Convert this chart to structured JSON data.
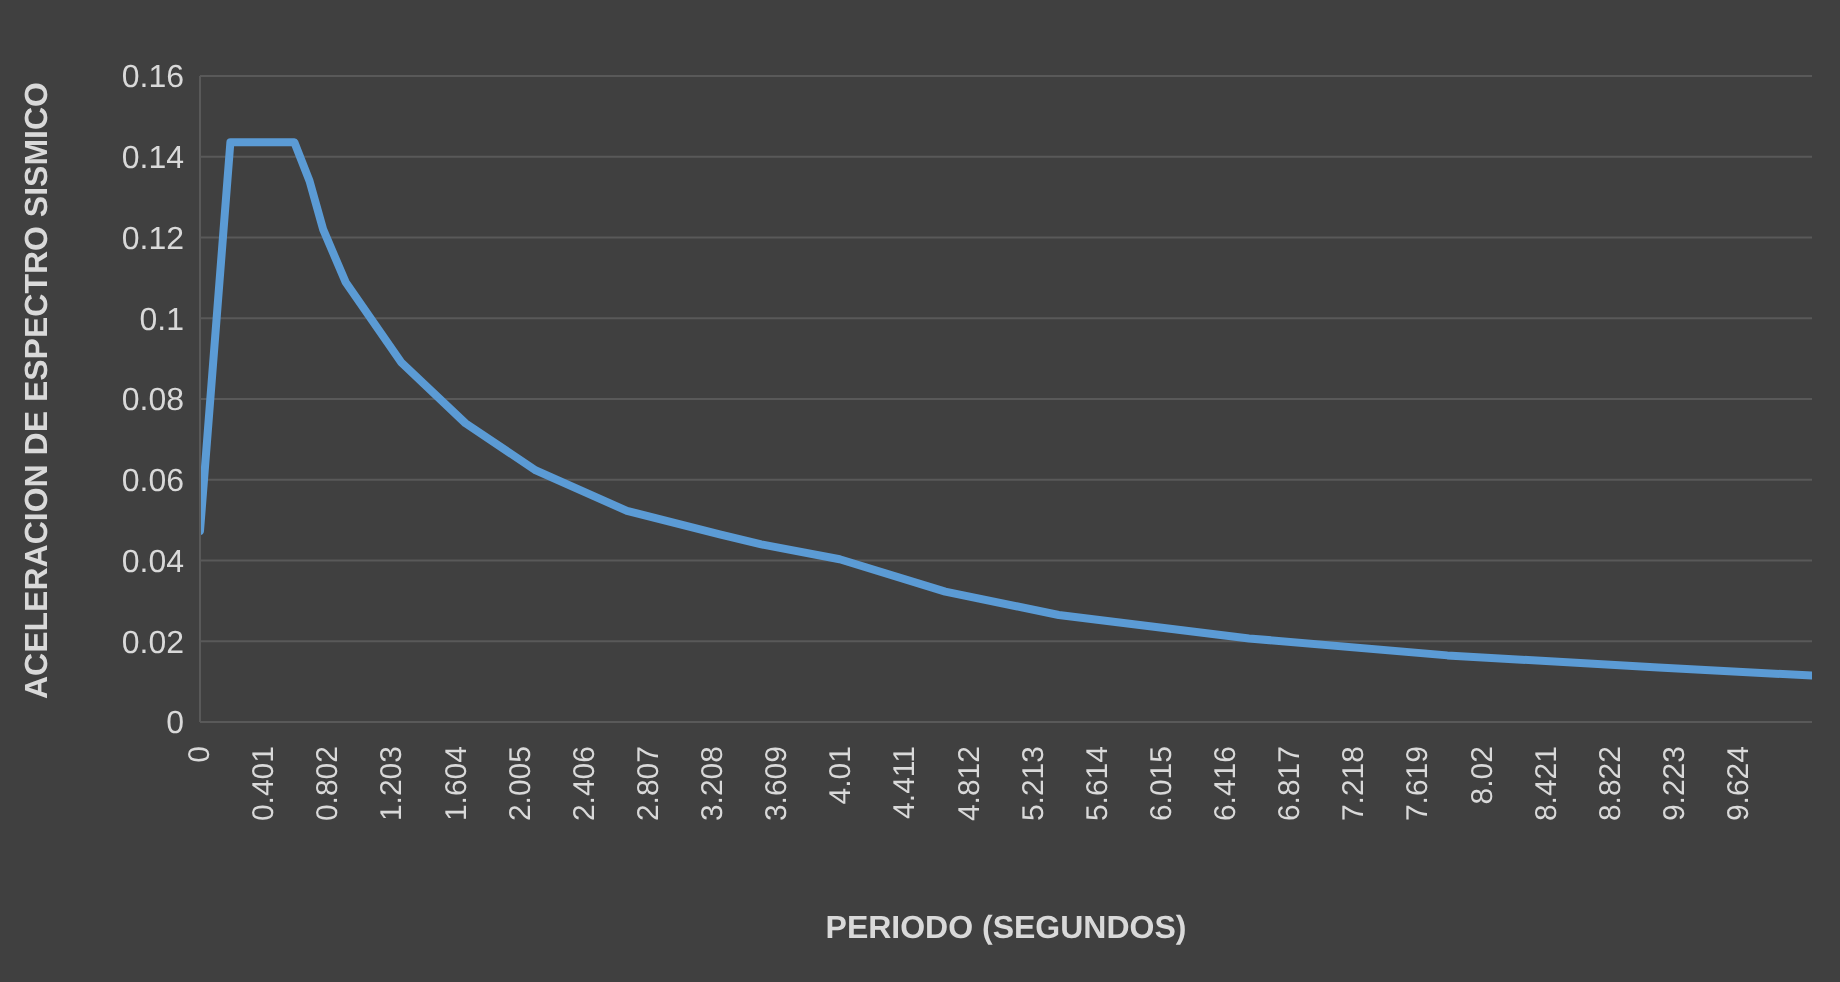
{
  "chart_data": {
    "type": "line",
    "xlabel": "PERIODO (SEGUNDOS)",
    "ylabel": "ACELERACION DE ESPECTRO SISMICO",
    "x": [
      0,
      0.19,
      0.59,
      0.685,
      0.77,
      0.91,
      1.26,
      1.66,
      2.1,
      2.67,
      3.25,
      3.51,
      4.0,
      4.66,
      5.37,
      6.56,
      7.8,
      9.12,
      10.08
    ],
    "series": [
      {
        "color": "#5b9bd5",
        "values": [
          0.0473,
          0.1436,
          0.1436,
          0.134,
          0.122,
          0.109,
          0.089,
          0.074,
          0.0623,
          0.0523,
          0.0465,
          0.044,
          0.0403,
          0.0323,
          0.0265,
          0.0207,
          0.0165,
          0.0135,
          0.0115
        ]
      }
    ],
    "xlim": [
      0,
      10.08
    ],
    "xticks": [
      0,
      0.401,
      0.802,
      1.203,
      1.604,
      2.005,
      2.406,
      2.807,
      3.208,
      3.609,
      4.01,
      4.411,
      4.812,
      5.213,
      5.614,
      6.015,
      6.416,
      6.817,
      7.218,
      7.619,
      8.02,
      8.421,
      8.822,
      9.223,
      9.624
    ],
    "ylim": [
      0,
      0.16
    ],
    "yticks": [
      0,
      0.02,
      0.04,
      0.06,
      0.08,
      0.1,
      0.12,
      0.14,
      0.16
    ],
    "grid": "y",
    "legend": false,
    "marker": "none",
    "line_style": "solid"
  }
}
